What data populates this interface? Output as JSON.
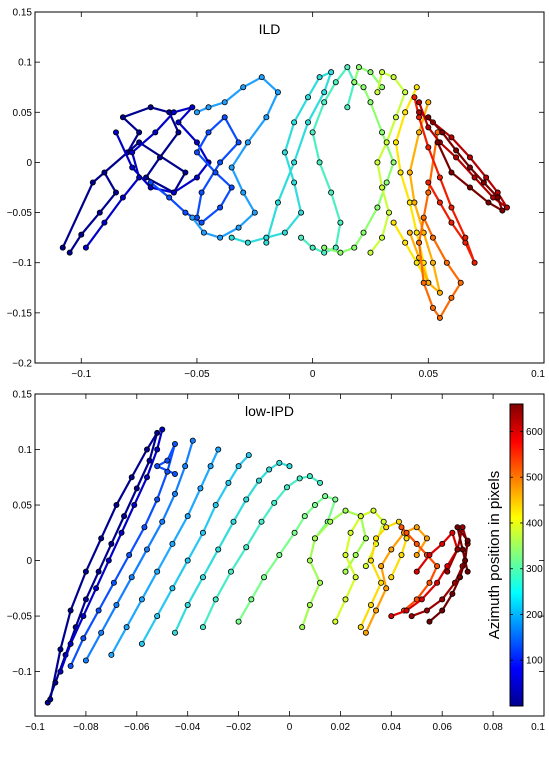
{
  "chart_data": [
    {
      "type": "scatter",
      "title": "ILD",
      "xlim": [
        -0.12,
        0.1
      ],
      "ylim": [
        -0.2,
        0.15
      ],
      "x_ticks": [
        -0.1,
        -0.05,
        0,
        0.05
      ],
      "x_tick_labels": [
        "−0.1",
        "−0.05",
        "0",
        "0.05"
      ],
      "x_edge_label": "0.1",
      "y_ticks": [
        -0.2,
        -0.15,
        -0.1,
        -0.05,
        0,
        0.05,
        0.1,
        0.15
      ],
      "y_tick_labels": [
        "−0.2",
        "−0.15",
        "−0.1",
        "−0.05",
        "0",
        "0.05",
        "0.1",
        "0.15"
      ],
      "grid": false,
      "series": [
        {
          "color": "#00008f",
          "x": [
            -0.105,
            -0.1,
            -0.092,
            -0.085,
            -0.09,
            -0.08,
            -0.075,
            -0.082,
            -0.07,
            -0.062,
            -0.058,
            -0.066,
            -0.072,
            -0.06,
            -0.055,
            -0.075,
            -0.095,
            -0.108
          ],
          "y": [
            -0.09,
            -0.072,
            -0.05,
            -0.03,
            -0.01,
            0.01,
            0.03,
            0.045,
            0.055,
            0.05,
            0.03,
            0.005,
            -0.015,
            -0.03,
            -0.01,
            0.02,
            -0.02,
            -0.085
          ]
        },
        {
          "color": "#0000c8",
          "x": [
            -0.098,
            -0.09,
            -0.082,
            -0.075,
            -0.078,
            -0.068,
            -0.06,
            -0.052,
            -0.058,
            -0.05,
            -0.045,
            -0.05,
            -0.06,
            -0.07,
            -0.078,
            -0.085
          ],
          "y": [
            -0.085,
            -0.06,
            -0.035,
            -0.015,
            0.01,
            0.03,
            0.05,
            0.055,
            0.04,
            0.02,
            0.0,
            -0.015,
            -0.03,
            -0.025,
            -0.005,
            0.03
          ]
        },
        {
          "color": "#0a4cff",
          "x": [
            -0.07,
            -0.062,
            -0.055,
            -0.048,
            -0.04,
            -0.035,
            -0.042,
            -0.05,
            -0.045,
            -0.038,
            -0.032,
            -0.04,
            -0.048,
            -0.05
          ],
          "y": [
            -0.02,
            -0.035,
            -0.05,
            -0.06,
            -0.045,
            -0.025,
            -0.01,
            0.01,
            0.03,
            0.045,
            0.02,
            0.0,
            -0.03,
            -0.055
          ]
        },
        {
          "color": "#1fa0ff",
          "x": [
            -0.052,
            -0.047,
            -0.04,
            -0.032,
            -0.025,
            -0.03,
            -0.035,
            -0.028,
            -0.02,
            -0.015,
            -0.022,
            -0.03,
            -0.038,
            -0.045,
            -0.05
          ],
          "y": [
            -0.055,
            -0.07,
            -0.075,
            -0.065,
            -0.05,
            -0.03,
            -0.005,
            0.02,
            0.045,
            0.07,
            0.085,
            0.075,
            0.06,
            0.055,
            0.05
          ]
        },
        {
          "color": "#2fdcdc",
          "x": [
            -0.035,
            -0.028,
            -0.02,
            -0.012,
            -0.005,
            -0.008,
            -0.012,
            -0.008,
            -0.002,
            0.003,
            0.008,
            0.005,
            -0.002,
            -0.008,
            -0.015,
            -0.02
          ],
          "y": [
            -0.075,
            -0.08,
            -0.075,
            -0.07,
            -0.05,
            -0.02,
            0.01,
            0.04,
            0.065,
            0.085,
            0.09,
            0.07,
            0.04,
            0.0,
            -0.04,
            -0.08
          ]
        },
        {
          "color": "#4cf0c0",
          "x": [
            -0.005,
            0.0,
            0.005,
            0.01,
            0.012,
            0.008,
            0.003,
            0.0,
            0.005,
            0.01,
            0.015,
            0.018,
            0.015
          ],
          "y": [
            -0.075,
            -0.085,
            -0.09,
            -0.085,
            -0.06,
            -0.03,
            0.0,
            0.03,
            0.06,
            0.08,
            0.095,
            0.08,
            0.055
          ]
        },
        {
          "color": "#8cff70",
          "x": [
            0.005,
            0.012,
            0.018,
            0.022,
            0.028,
            0.032,
            0.035,
            0.03,
            0.025,
            0.022,
            0.018,
            0.02,
            0.025,
            0.03
          ],
          "y": [
            -0.085,
            -0.09,
            -0.085,
            -0.07,
            -0.045,
            -0.02,
            0.0,
            0.03,
            0.06,
            0.075,
            0.08,
            0.095,
            0.09,
            0.075
          ]
        },
        {
          "color": "#c8ff3a",
          "x": [
            0.025,
            0.03,
            0.033,
            0.03,
            0.028,
            0.032,
            0.036,
            0.04,
            0.035,
            0.03,
            0.028
          ],
          "y": [
            -0.09,
            -0.075,
            -0.05,
            -0.025,
            0.0,
            0.02,
            0.045,
            0.07,
            0.085,
            0.09,
            0.07
          ]
        },
        {
          "color": "#ffe600",
          "x": [
            0.035,
            0.04,
            0.045,
            0.05,
            0.048,
            0.045,
            0.042,
            0.038,
            0.036,
            0.04,
            0.045
          ],
          "y": [
            -0.06,
            -0.08,
            -0.1,
            -0.12,
            -0.1,
            -0.07,
            -0.04,
            -0.01,
            0.02,
            0.05,
            0.075
          ]
        },
        {
          "color": "#ffb000",
          "x": [
            0.042,
            0.046,
            0.05,
            0.055,
            0.052,
            0.048,
            0.044,
            0.042,
            0.046,
            0.05
          ],
          "y": [
            -0.07,
            -0.095,
            -0.12,
            -0.13,
            -0.1,
            -0.07,
            -0.04,
            -0.01,
            0.03,
            0.06
          ]
        },
        {
          "color": "#ff6a00",
          "x": [
            0.048,
            0.052,
            0.058,
            0.064,
            0.06,
            0.055,
            0.052,
            0.048,
            0.046,
            0.05,
            0.054
          ],
          "y": [
            -0.055,
            -0.075,
            -0.1,
            -0.12,
            -0.135,
            -0.155,
            -0.145,
            -0.12,
            -0.08,
            -0.03,
            0.03
          ]
        },
        {
          "color": "#f01e00",
          "x": [
            0.05,
            0.055,
            0.06,
            0.066,
            0.07,
            0.066,
            0.06,
            0.055,
            0.05,
            0.046,
            0.044
          ],
          "y": [
            -0.02,
            -0.04,
            -0.06,
            -0.08,
            -0.1,
            -0.075,
            -0.045,
            -0.015,
            0.015,
            0.045,
            0.065
          ]
        },
        {
          "color": "#b40000",
          "x": [
            0.046,
            0.052,
            0.06,
            0.068,
            0.075,
            0.08,
            0.084,
            0.078,
            0.07,
            0.062,
            0.055,
            0.05,
            0.046
          ],
          "y": [
            0.05,
            0.04,
            0.025,
            0.005,
            -0.015,
            -0.03,
            -0.045,
            -0.035,
            -0.015,
            0.005,
            0.02,
            0.035,
            0.06
          ]
        },
        {
          "color": "#7a0000",
          "x": [
            0.05,
            0.056,
            0.062,
            0.068,
            0.074,
            0.08,
            0.082,
            0.076,
            0.068,
            0.06,
            0.054
          ],
          "y": [
            0.045,
            0.03,
            0.012,
            -0.005,
            -0.02,
            -0.035,
            -0.048,
            -0.04,
            -0.025,
            -0.01,
            0.02
          ]
        }
      ]
    },
    {
      "type": "scatter",
      "title": "low-IPD",
      "xlim": [
        -0.1,
        0.1
      ],
      "ylim": [
        -0.14,
        0.15
      ],
      "x_ticks": [
        -0.1,
        -0.08,
        -0.06,
        -0.04,
        -0.02,
        0,
        0.02,
        0.04,
        0.06,
        0.08
      ],
      "x_tick_labels": [
        "−0.1",
        "−0.08",
        "−0.06",
        "−0.04",
        "−0.02",
        "0",
        "0.02",
        "0.04",
        "0.06",
        "0.08"
      ],
      "x_edge_label": "0.1",
      "y_ticks": [
        -0.1,
        -0.05,
        0,
        0.05,
        0.1,
        0.15
      ],
      "y_tick_labels": [
        "−0.1",
        "−0.05",
        "0",
        "0.05",
        "0.1",
        "0.15"
      ],
      "grid": false,
      "colorbar": {
        "label": "Azimuth position in pixels",
        "range": [
          0,
          660
        ],
        "ticks": [
          100,
          200,
          300,
          400,
          500,
          600
        ],
        "colormap": "jet"
      },
      "series": [
        {
          "color": "#00008f",
          "x": [
            -0.095,
            -0.092,
            -0.088,
            -0.084,
            -0.08,
            -0.075,
            -0.07,
            -0.065,
            -0.06,
            -0.055,
            -0.052,
            -0.056,
            -0.062,
            -0.068,
            -0.074,
            -0.08,
            -0.086,
            -0.09,
            -0.094
          ],
          "y": [
            -0.128,
            -0.11,
            -0.085,
            -0.06,
            -0.035,
            -0.01,
            0.015,
            0.04,
            0.065,
            0.09,
            0.115,
            0.1,
            0.075,
            0.05,
            0.02,
            -0.01,
            -0.045,
            -0.08,
            -0.125
          ]
        },
        {
          "color": "#0000c8",
          "x": [
            -0.09,
            -0.086,
            -0.081,
            -0.076,
            -0.071,
            -0.066,
            -0.061,
            -0.056,
            -0.052,
            -0.05
          ],
          "y": [
            -0.1,
            -0.075,
            -0.05,
            -0.025,
            0.0,
            0.025,
            0.05,
            0.075,
            0.1,
            0.118
          ]
        },
        {
          "color": "#0a50ff",
          "x": [
            -0.086,
            -0.081,
            -0.075,
            -0.069,
            -0.063,
            -0.057,
            -0.052,
            -0.048,
            -0.045,
            -0.048,
            -0.052,
            -0.045
          ],
          "y": [
            -0.095,
            -0.07,
            -0.045,
            -0.02,
            0.005,
            0.03,
            0.055,
            0.08,
            0.105,
            0.09,
            0.085,
            0.078
          ]
        },
        {
          "color": "#1480ff",
          "x": [
            -0.08,
            -0.074,
            -0.068,
            -0.062,
            -0.056,
            -0.05,
            -0.045,
            -0.041,
            -0.038
          ],
          "y": [
            -0.09,
            -0.065,
            -0.04,
            -0.015,
            0.01,
            0.035,
            0.06,
            0.085,
            0.108
          ]
        },
        {
          "color": "#1ea8ff",
          "x": [
            -0.07,
            -0.064,
            -0.058,
            -0.052,
            -0.046,
            -0.04,
            -0.035,
            -0.031,
            -0.028
          ],
          "y": [
            -0.085,
            -0.06,
            -0.035,
            -0.01,
            0.015,
            0.04,
            0.065,
            0.085,
            0.1
          ]
        },
        {
          "color": "#28c8f0",
          "x": [
            -0.058,
            -0.052,
            -0.046,
            -0.04,
            -0.034,
            -0.029,
            -0.024,
            -0.02,
            -0.016
          ],
          "y": [
            -0.075,
            -0.05,
            -0.025,
            0.0,
            0.025,
            0.05,
            0.07,
            0.085,
            0.095
          ]
        },
        {
          "color": "#32dcdc",
          "x": [
            -0.045,
            -0.04,
            -0.034,
            -0.028,
            -0.022,
            -0.017,
            -0.012,
            -0.008,
            -0.004,
            0.0
          ],
          "y": [
            -0.065,
            -0.04,
            -0.015,
            0.01,
            0.035,
            0.055,
            0.072,
            0.082,
            0.088,
            0.085
          ]
        },
        {
          "color": "#46ecc8",
          "x": [
            -0.034,
            -0.029,
            -0.023,
            -0.017,
            -0.011,
            -0.006,
            -0.001,
            0.004,
            0.008,
            0.012
          ],
          "y": [
            -0.06,
            -0.035,
            -0.01,
            0.012,
            0.035,
            0.052,
            0.066,
            0.074,
            0.076,
            0.07
          ]
        },
        {
          "color": "#78ff8c",
          "x": [
            -0.02,
            -0.015,
            -0.01,
            -0.004,
            0.002,
            0.006,
            0.01,
            0.014,
            0.018,
            0.015,
            0.01
          ],
          "y": [
            -0.055,
            -0.035,
            -0.015,
            0.005,
            0.025,
            0.04,
            0.05,
            0.058,
            0.055,
            0.035,
            0.02
          ]
        },
        {
          "color": "#a0ff50",
          "x": [
            0.005,
            0.008,
            0.012,
            0.008,
            0.01,
            0.016,
            0.022,
            0.028,
            0.03,
            0.026,
            0.022
          ],
          "y": [
            -0.06,
            -0.04,
            -0.02,
            0.0,
            0.02,
            0.035,
            0.045,
            0.04,
            0.02,
            0.005,
            -0.01
          ]
        },
        {
          "color": "#d2ff28",
          "x": [
            0.018,
            0.022,
            0.026,
            0.022,
            0.024,
            0.028,
            0.033,
            0.037,
            0.034,
            0.03
          ],
          "y": [
            -0.055,
            -0.035,
            -0.015,
            0.005,
            0.025,
            0.04,
            0.045,
            0.035,
            0.015,
            -0.005
          ]
        },
        {
          "color": "#ffdc00",
          "x": [
            0.028,
            0.032,
            0.036,
            0.032,
            0.034,
            0.038,
            0.043,
            0.046,
            0.044,
            0.04
          ],
          "y": [
            -0.06,
            -0.04,
            -0.02,
            0.0,
            0.02,
            0.03,
            0.035,
            0.02,
            0.005,
            -0.015
          ]
        },
        {
          "color": "#ffa000",
          "x": [
            0.03,
            0.034,
            0.038,
            0.036,
            0.04,
            0.045,
            0.05,
            0.054,
            0.05
          ],
          "y": [
            -0.065,
            -0.045,
            -0.025,
            -0.005,
            0.01,
            0.025,
            0.03,
            0.02,
            0.005
          ]
        },
        {
          "color": "#ff5000",
          "x": [
            0.045,
            0.05,
            0.055,
            0.058,
            0.054,
            0.05,
            0.046,
            0.044
          ],
          "y": [
            -0.045,
            -0.035,
            -0.02,
            -0.005,
            0.005,
            0.015,
            0.025,
            0.03
          ]
        },
        {
          "color": "#dc0000",
          "x": [
            0.04,
            0.046,
            0.052,
            0.058,
            0.062,
            0.066,
            0.064,
            0.06,
            0.055,
            0.05
          ],
          "y": [
            -0.05,
            -0.045,
            -0.035,
            -0.02,
            -0.005,
            0.01,
            0.025,
            0.015,
            0.005,
            -0.01
          ]
        },
        {
          "color": "#9a0000",
          "x": [
            0.048,
            0.054,
            0.06,
            0.065,
            0.068,
            0.07,
            0.068,
            0.066,
            0.062
          ],
          "y": [
            -0.05,
            -0.045,
            -0.035,
            -0.02,
            -0.005,
            0.015,
            0.03,
            0.01,
            -0.01
          ]
        },
        {
          "color": "#700000",
          "x": [
            0.055,
            0.06,
            0.064,
            0.067,
            0.069,
            0.07,
            0.066,
            0.068,
            0.07
          ],
          "y": [
            -0.055,
            -0.045,
            -0.03,
            -0.015,
            0.0,
            0.018,
            0.03,
            0.01,
            -0.01
          ]
        }
      ]
    }
  ]
}
